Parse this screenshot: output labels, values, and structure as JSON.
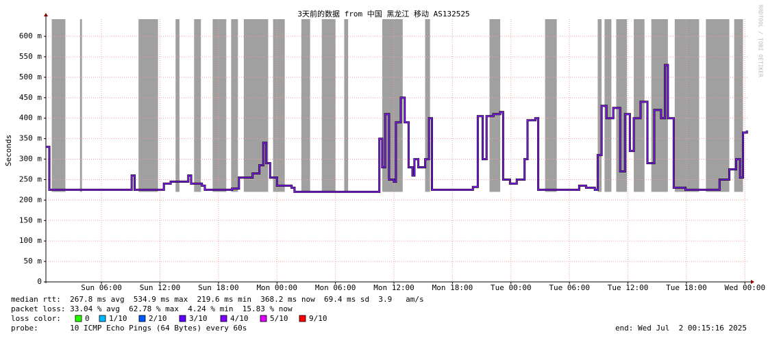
{
  "chart_data": {
    "type": "line",
    "title": "3天前的数据 from 中国 黑龙江 移动 AS132525",
    "y_label": "Seconds",
    "side_text": "RRDTOOL / TOBI OETIKER",
    "xlim": [
      0.3,
      72.4
    ],
    "xticks": [
      {
        "value": 6,
        "label": "Sun 06:00"
      },
      {
        "value": 12,
        "label": "Sun 12:00"
      },
      {
        "value": 18,
        "label": "Sun 18:00"
      },
      {
        "value": 24,
        "label": "Mon 00:00"
      },
      {
        "value": 30,
        "label": "Mon 06:00"
      },
      {
        "value": 36,
        "label": "Mon 12:00"
      },
      {
        "value": 42,
        "label": "Mon 18:00"
      },
      {
        "value": 48,
        "label": "Tue 00:00"
      },
      {
        "value": 54,
        "label": "Tue 06:00"
      },
      {
        "value": 60,
        "label": "Tue 12:00"
      },
      {
        "value": 66,
        "label": "Tue 18:00"
      },
      {
        "value": 72,
        "label": "Wed 00:00"
      }
    ],
    "ylim": [
      0,
      0.642
    ],
    "yticks": [
      {
        "value": 0,
        "label": "0"
      },
      {
        "value": 0.05,
        "label": "50 m"
      },
      {
        "value": 0.1,
        "label": "100 m"
      },
      {
        "value": 0.15,
        "label": "150 m"
      },
      {
        "value": 0.2,
        "label": "200 m"
      },
      {
        "value": 0.25,
        "label": "250 m"
      },
      {
        "value": 0.3,
        "label": "300 m"
      },
      {
        "value": 0.35,
        "label": "350 m"
      },
      {
        "value": 0.4,
        "label": "400 m"
      },
      {
        "value": 0.45,
        "label": "450 m"
      },
      {
        "value": 0.5,
        "label": "500 m"
      },
      {
        "value": 0.55,
        "label": "550 m"
      },
      {
        "value": 0.6,
        "label": "600 m"
      }
    ],
    "grid": true,
    "loss_periods": [
      [
        0.9,
        2.3
      ],
      [
        3.8,
        4.0
      ],
      [
        9.8,
        11.8
      ],
      [
        13.6,
        14.0
      ],
      [
        15.5,
        16.2
      ],
      [
        17.4,
        18.8
      ],
      [
        19.3,
        20.0
      ],
      [
        20.6,
        23.1
      ],
      [
        23.6,
        24.8
      ],
      [
        26.5,
        27.4
      ],
      [
        28.6,
        30.0
      ],
      [
        30.9,
        31.3
      ],
      [
        34.8,
        36.9
      ],
      [
        39.2,
        39.7
      ],
      [
        45.8,
        46.9
      ],
      [
        51.5,
        52.7
      ],
      [
        56.9,
        57.3
      ],
      [
        57.6,
        58.3
      ],
      [
        58.8,
        59.9
      ],
      [
        60.6,
        61.7
      ],
      [
        62.4,
        64.1
      ],
      [
        64.8,
        67.3
      ],
      [
        68.0,
        70.4
      ],
      [
        70.9,
        71.8
      ]
    ],
    "loss_period_color": "#a0a0a0",
    "x": [
      0.3,
      0.65,
      2.6,
      8.9,
      9.1,
      9.4,
      12.4,
      13.1,
      14.5,
      14.9,
      15.2,
      16.3,
      16.6,
      19.4,
      20.1,
      21.5,
      22.2,
      22.6,
      22.9,
      23.3,
      24.0,
      25.5,
      25.8,
      29.3,
      30.7,
      34.2,
      34.5,
      34.8,
      35.1,
      35.5,
      36.0,
      36.2,
      36.7,
      37.1,
      37.5,
      37.9,
      38.1,
      38.5,
      39.2,
      39.6,
      39.9,
      43.4,
      44.1,
      44.6,
      45.1,
      45.5,
      46.2,
      46.9,
      47.2,
      47.9,
      48.6,
      49.4,
      49.7,
      50.5,
      50.8,
      54.6,
      55.0,
      55.7,
      56.6,
      56.9,
      57.3,
      57.8,
      58.5,
      59.2,
      59.7,
      60.2,
      60.6,
      61.3,
      62.0,
      62.7,
      63.4,
      63.8,
      64.1,
      64.5,
      64.7,
      65.9,
      68.0,
      69.4,
      70.4,
      71.1,
      71.5,
      71.8,
      72.2
    ],
    "series": [
      {
        "name": "median rtt",
        "color": "#8a1cff",
        "values": [
          0.33,
          0.225,
          0.225,
          0.225,
          0.26,
          0.225,
          0.24,
          0.245,
          0.245,
          0.26,
          0.24,
          0.235,
          0.225,
          0.228,
          0.255,
          0.265,
          0.285,
          0.34,
          0.29,
          0.255,
          0.235,
          0.23,
          0.22,
          0.22,
          0.22,
          0.22,
          0.35,
          0.28,
          0.41,
          0.25,
          0.245,
          0.39,
          0.45,
          0.39,
          0.28,
          0.26,
          0.3,
          0.28,
          0.3,
          0.4,
          0.225,
          0.225,
          0.232,
          0.405,
          0.3,
          0.405,
          0.41,
          0.415,
          0.25,
          0.24,
          0.25,
          0.3,
          0.395,
          0.4,
          0.225,
          0.225,
          0.235,
          0.23,
          0.225,
          0.31,
          0.43,
          0.4,
          0.425,
          0.27,
          0.41,
          0.32,
          0.4,
          0.44,
          0.29,
          0.42,
          0.4,
          0.53,
          0.4,
          0.4,
          0.23,
          0.225,
          0.225,
          0.25,
          0.275,
          0.3,
          0.255,
          0.365,
          0.37
        ]
      }
    ],
    "legend_lines": {
      "median_rtt": "median rtt:  267.8 ms avg  534.9 ms max  219.6 ms min  368.2 ms now  69.4 ms sd  3.9   am/s",
      "packet_loss": "packet loss: 33.04 % avg  62.78 % max  4.24 % min  15.83 % now",
      "loss_color_label": "loss color:",
      "probe": "probe:       10 ICMP Echo Pings (64 Bytes) every 60s",
      "end": "end: Wed Jul  2 00:15:16 2025"
    },
    "loss_colors": [
      {
        "name": "0",
        "color": "#26ff00"
      },
      {
        "name": "1/10",
        "color": "#00b8ff"
      },
      {
        "name": "2/10",
        "color": "#0059ff"
      },
      {
        "name": "3/10",
        "color": "#5e00ff"
      },
      {
        "name": "4/10",
        "color": "#7e00ff"
      },
      {
        "name": "5/10",
        "color": "#dd00ff"
      },
      {
        "name": "9/10",
        "color": "#ff0000"
      }
    ]
  }
}
